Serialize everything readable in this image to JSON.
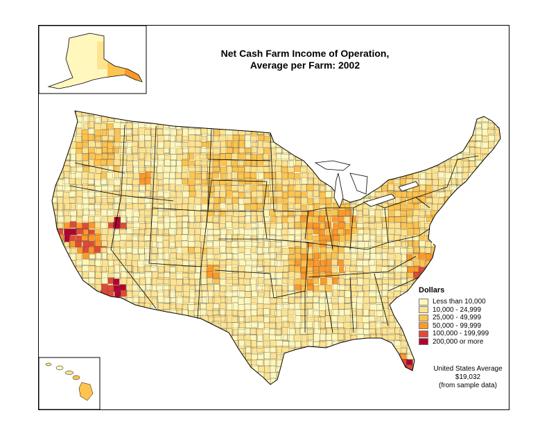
{
  "title_line1": "Net Cash Farm Income of Operation,",
  "title_line2": "Average per Farm:  2002",
  "legend": {
    "title": "Dollars",
    "classes": [
      {
        "label": "Less than 10,000",
        "color": "#fff7bc"
      },
      {
        "label": "10,000 - 24,999",
        "color": "#fee391"
      },
      {
        "label": "25,000 - 49,999",
        "color": "#fec44f"
      },
      {
        "label": "50,000 - 99,999",
        "color": "#fe9929"
      },
      {
        "label": "100,000 - 199,999",
        "color": "#e34a33"
      },
      {
        "label": "200,000 or more",
        "color": "#b30030"
      }
    ]
  },
  "average": {
    "line1": "United States Average",
    "line2": "$19,032",
    "line3": "(from sample data)"
  },
  "palette": {
    "border": "#000000",
    "county_lines": "#555555"
  }
}
